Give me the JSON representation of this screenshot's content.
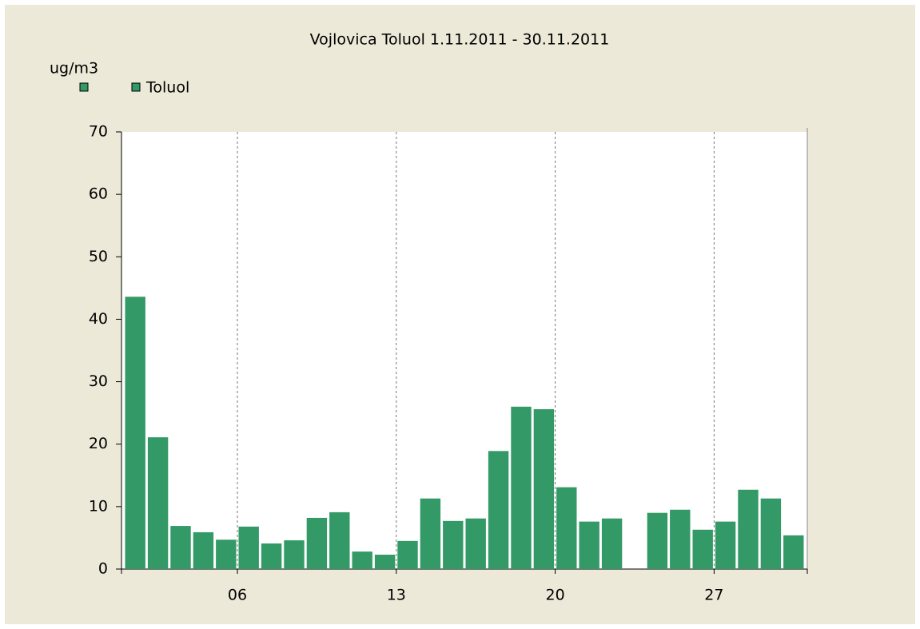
{
  "chart_data": {
    "type": "bar",
    "title": "Vojlovica Toluol    1.11.2011 - 30.11.2011",
    "y_axis_label": "ug/m3",
    "categories": [
      null,
      null,
      null,
      null,
      null,
      "06",
      null,
      null,
      null,
      null,
      null,
      null,
      "13",
      null,
      null,
      null,
      null,
      null,
      null,
      "20",
      null,
      null,
      null,
      null,
      null,
      null,
      "27",
      null,
      null,
      null
    ],
    "series": [
      {
        "name": "Toluol",
        "color": "#339966",
        "values": [
          43.6,
          21.1,
          6.9,
          5.9,
          4.7,
          6.8,
          4.1,
          4.6,
          8.2,
          9.1,
          2.8,
          2.3,
          4.5,
          11.3,
          7.7,
          8.1,
          18.9,
          26.0,
          25.6,
          13.1,
          7.6,
          8.1,
          null,
          9.0,
          9.5,
          6.3,
          7.6,
          12.7,
          11.3,
          5.4
        ]
      }
    ],
    "ylim": [
      0,
      70
    ],
    "yticks": [
      0,
      10,
      20,
      30,
      40,
      50,
      60,
      70
    ],
    "grid": true
  }
}
